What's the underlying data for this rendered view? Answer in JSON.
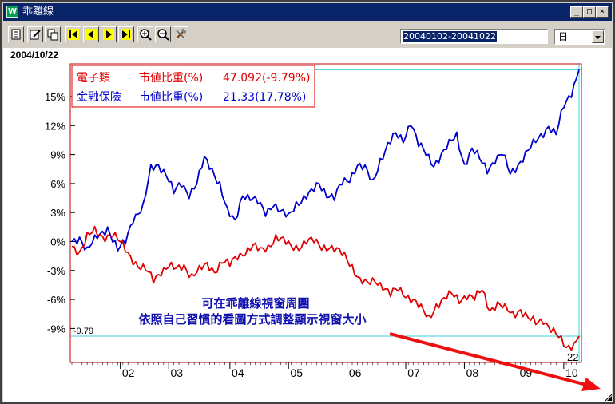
{
  "window": {
    "title": "乖離線",
    "icon_label": "W",
    "minimize": "_",
    "maximize": "□",
    "close": "×"
  },
  "toolbar": {
    "buttons": [
      "grid-icon",
      "edit-icon",
      "copy-icon",
      "first-icon",
      "prev-icon",
      "next-icon",
      "last-icon",
      "zoom-in-icon",
      "zoom-out-icon",
      "tools-icon"
    ],
    "date_range": "20040102-20041022",
    "period": "日"
  },
  "header": {
    "date": "2004/10/22"
  },
  "legend": [
    {
      "name": "電子類",
      "label": "市値比重(%)",
      "value": "47.092(-9.79%)",
      "color": "#e00000"
    },
    {
      "name": "金融保險",
      "label": "市値比重(%)",
      "value": "21.33(17.78%)",
      "color": "#0000cc"
    }
  ],
  "annotation": {
    "line1": "可在乖離線視窗周圍",
    "line2": "依照自己習慣的看圖方式調整顯示視窗大小"
  },
  "chart_data": {
    "type": "line",
    "x_ticks": [
      "02",
      "03",
      "04",
      "05",
      "06",
      "07",
      "08",
      "09",
      "10"
    ],
    "y_ticks": [
      "15%",
      "12%",
      "9%",
      "6%",
      "3%",
      "0%",
      "-3%",
      "-6%",
      "-9%"
    ],
    "y_tick_values": [
      15,
      12,
      9,
      6,
      3,
      0,
      -3,
      -6,
      -9
    ],
    "ylim": [
      -12,
      18
    ],
    "n_days": 200,
    "month_start_index": [
      19,
      38,
      62,
      85,
      108,
      131,
      154,
      175,
      193
    ],
    "crosshair_low_label": "-9.79",
    "crosshair_x_label": "22",
    "series": [
      {
        "name": "金融保險",
        "color": "#0000cc",
        "keys": [
          [
            0,
            0
          ],
          [
            3,
            0.5
          ],
          [
            6,
            -1
          ],
          [
            10,
            0.5
          ],
          [
            14,
            1.5
          ],
          [
            18,
            -1
          ],
          [
            21,
            0
          ],
          [
            24,
            2.5
          ],
          [
            28,
            3.5
          ],
          [
            31,
            7.5
          ],
          [
            34,
            8
          ],
          [
            37,
            7
          ],
          [
            40,
            5
          ],
          [
            43,
            6
          ],
          [
            46,
            5
          ],
          [
            49,
            6
          ],
          [
            52,
            8.5
          ],
          [
            55,
            7.5
          ],
          [
            58,
            6
          ],
          [
            61,
            3
          ],
          [
            64,
            2
          ],
          [
            67,
            5
          ],
          [
            70,
            4.5
          ],
          [
            73,
            4
          ],
          [
            76,
            3
          ],
          [
            79,
            4
          ],
          [
            82,
            3
          ],
          [
            85,
            2.5
          ],
          [
            88,
            4
          ],
          [
            91,
            4.5
          ],
          [
            94,
            5
          ],
          [
            97,
            6
          ],
          [
            100,
            5
          ],
          [
            103,
            4.5
          ],
          [
            106,
            6
          ],
          [
            109,
            6.5
          ],
          [
            112,
            8
          ],
          [
            115,
            7.5
          ],
          [
            118,
            6
          ],
          [
            121,
            8.5
          ],
          [
            124,
            10
          ],
          [
            127,
            11
          ],
          [
            130,
            10.5
          ],
          [
            133,
            12.5
          ],
          [
            136,
            10
          ],
          [
            139,
            9
          ],
          [
            142,
            8
          ],
          [
            145,
            9
          ],
          [
            148,
            10
          ],
          [
            151,
            11
          ],
          [
            154,
            8
          ],
          [
            157,
            9.5
          ],
          [
            160,
            8.5
          ],
          [
            163,
            7.5
          ],
          [
            166,
            8.5
          ],
          [
            169,
            9
          ],
          [
            172,
            7
          ],
          [
            175,
            8
          ],
          [
            178,
            9
          ],
          [
            181,
            10
          ],
          [
            184,
            11
          ],
          [
            187,
            12
          ],
          [
            190,
            11
          ],
          [
            193,
            14
          ],
          [
            196,
            15.5
          ],
          [
            199,
            17.78
          ]
        ]
      },
      {
        "name": "電子類",
        "color": "#e00000",
        "keys": [
          [
            0,
            -0.5
          ],
          [
            3,
            -1
          ],
          [
            6,
            0.5
          ],
          [
            9,
            1
          ],
          [
            12,
            0.5
          ],
          [
            16,
            0.8
          ],
          [
            20,
            -0.5
          ],
          [
            23,
            -1.5
          ],
          [
            26,
            -2.5
          ],
          [
            29,
            -3
          ],
          [
            32,
            -4
          ],
          [
            35,
            -3
          ],
          [
            38,
            -2.5
          ],
          [
            41,
            -3
          ],
          [
            44,
            -2.5
          ],
          [
            47,
            -3.5
          ],
          [
            50,
            -3
          ],
          [
            53,
            -2.5
          ],
          [
            56,
            -3
          ],
          [
            59,
            -2
          ],
          [
            62,
            -2.5
          ],
          [
            65,
            -1.5
          ],
          [
            68,
            -1
          ],
          [
            71,
            -0.5
          ],
          [
            74,
            -1
          ],
          [
            77,
            -0.5
          ],
          [
            80,
            0.5
          ],
          [
            83,
            0
          ],
          [
            86,
            -0.5
          ],
          [
            89,
            -0.5
          ],
          [
            92,
            0
          ],
          [
            95,
            0
          ],
          [
            98,
            -0.5
          ],
          [
            101,
            -0.5
          ],
          [
            104,
            -1
          ],
          [
            107,
            -1.5
          ],
          [
            110,
            -2.5
          ],
          [
            113,
            -4
          ],
          [
            116,
            -4.5
          ],
          [
            119,
            -4
          ],
          [
            122,
            -4.5
          ],
          [
            125,
            -5.5
          ],
          [
            128,
            -5
          ],
          [
            131,
            -5.5
          ],
          [
            134,
            -6
          ],
          [
            137,
            -7
          ],
          [
            140,
            -8
          ],
          [
            143,
            -6.5
          ],
          [
            146,
            -6
          ],
          [
            149,
            -5.5
          ],
          [
            152,
            -6
          ],
          [
            155,
            -5.5
          ],
          [
            158,
            -6
          ],
          [
            161,
            -5
          ],
          [
            164,
            -7
          ],
          [
            167,
            -6.5
          ],
          [
            170,
            -7
          ],
          [
            173,
            -7.5
          ],
          [
            176,
            -7
          ],
          [
            179,
            -8
          ],
          [
            182,
            -8.5
          ],
          [
            185,
            -8
          ],
          [
            188,
            -9
          ],
          [
            191,
            -10
          ],
          [
            194,
            -11
          ],
          [
            197,
            -10.5
          ],
          [
            199,
            -9.79
          ]
        ]
      }
    ]
  }
}
